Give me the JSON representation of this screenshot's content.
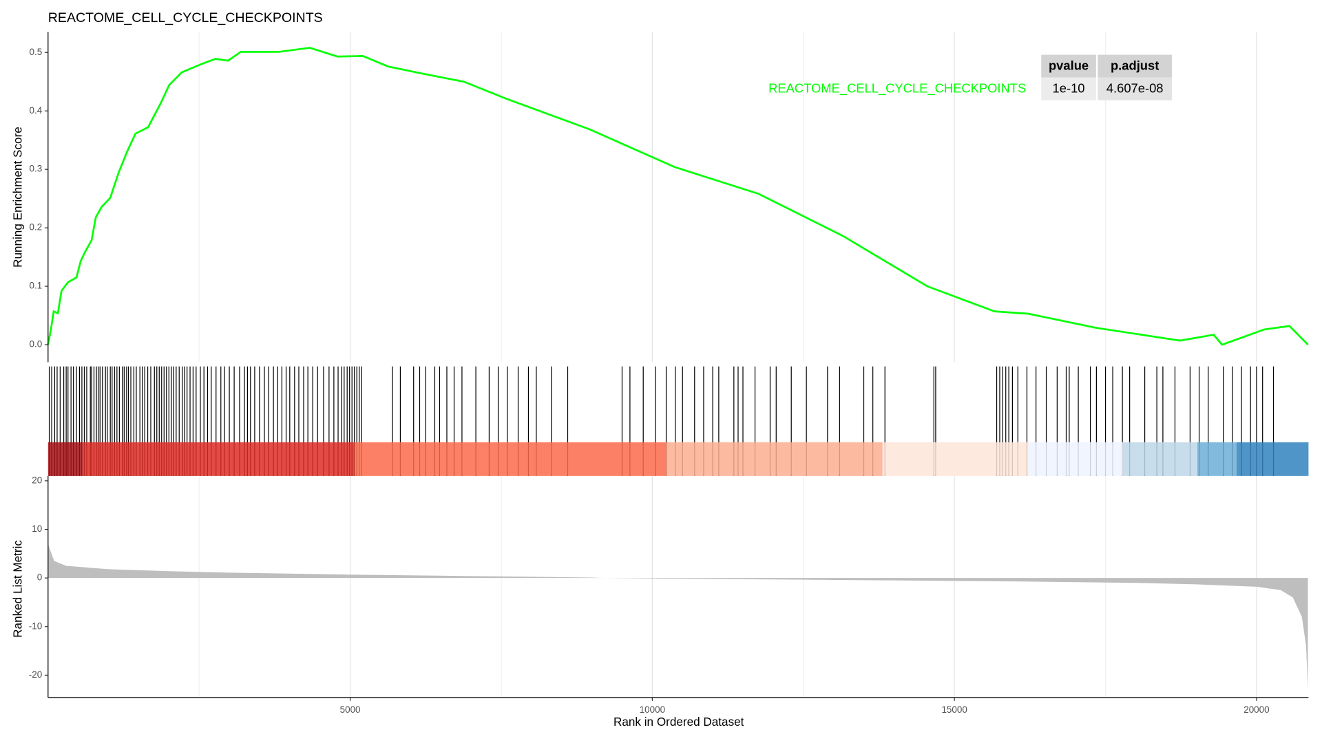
{
  "chart_data": [
    {
      "type": "line",
      "title": "REACTOME_CELL_CYCLE_CHECKPOINTS",
      "ylabel": "Running Enrichment Score",
      "x": [
        0,
        52,
        93,
        163,
        222,
        330,
        470,
        540,
        609,
        721,
        790,
        888,
        1028,
        1167,
        1307,
        1446,
        1655,
        1864,
        2003,
        2212,
        2560,
        2770,
        2979,
        3188,
        3537,
        3816,
        4332,
        4792,
        5210,
        5628,
        6186,
        6883,
        7580,
        8974,
        10368,
        11762,
        13156,
        14550,
        15665,
        16223,
        17338,
        18732,
        19290,
        19429,
        20126,
        20544,
        20851
      ],
      "series": [
        {
          "name": "REACTOME_CELL_CYCLE_CHECKPOINTS",
          "color": "#00ff00",
          "values": [
            0,
            0.029,
            0.057,
            0.054,
            0.092,
            0.107,
            0.115,
            0.143,
            0.158,
            0.179,
            0.218,
            0.236,
            0.251,
            0.294,
            0.33,
            0.361,
            0.372,
            0.413,
            0.444,
            0.466,
            0.481,
            0.489,
            0.486,
            0.501,
            0.501,
            0.501,
            0.508,
            0.493,
            0.494,
            0.476,
            0.464,
            0.45,
            0.421,
            0.368,
            0.304,
            0.258,
            0.186,
            0.1,
            0.057,
            0.053,
            0.029,
            0.007,
            0.017,
            0,
            0.026,
            0.032,
            0
          ]
        }
      ],
      "xlim": [
        0,
        20860
      ],
      "ylim": [
        -0.03,
        0.535
      ],
      "yticks": [
        {
          "value": 0,
          "label": "0.0"
        },
        0.1,
        0.2,
        0.3,
        0.4,
        0.5
      ],
      "table": {
        "columns": [
          "pvalue",
          "p.adjust"
        ],
        "rows": [
          [
            "1e-10",
            "4.607e-08"
          ]
        ]
      }
    },
    {
      "type": "rug",
      "color": "#000000",
      "x": [
        20,
        60,
        110,
        150,
        200,
        260,
        300,
        330,
        380,
        420,
        470,
        520,
        560,
        600,
        640,
        700,
        720,
        760,
        800,
        830,
        860,
        900,
        950,
        980,
        1030,
        1060,
        1100,
        1140,
        1180,
        1230,
        1260,
        1300,
        1330,
        1370,
        1420,
        1460,
        1520,
        1560,
        1600,
        1650,
        1700,
        1760,
        1800,
        1840,
        1880,
        1920,
        1960,
        2000,
        2040,
        2080,
        2120,
        2170,
        2220,
        2260,
        2300,
        2350,
        2400,
        2450,
        2520,
        2580,
        2640,
        2700,
        2780,
        2860,
        2920,
        3000,
        3080,
        3170,
        3250,
        3300,
        3350,
        3420,
        3500,
        3580,
        3650,
        3730,
        3800,
        3870,
        3940,
        4000,
        4080,
        4150,
        4230,
        4300,
        4380,
        4460,
        4560,
        4650,
        4730,
        4800,
        4860,
        4900,
        4950,
        4990,
        5030,
        5070,
        5110,
        5150,
        5190,
        5700,
        5830,
        6050,
        6150,
        6250,
        6400,
        6480,
        6600,
        6720,
        6850,
        7080,
        7300,
        7450,
        7600,
        7780,
        7950,
        8080,
        8330,
        8600,
        9500,
        9630,
        9850,
        10050,
        10230,
        10380,
        10500,
        10700,
        10850,
        11000,
        11100,
        11350,
        11420,
        11500,
        11700,
        11950,
        12050,
        12300,
        12550,
        12900,
        13100,
        13500,
        13650,
        13850,
        14660,
        14690,
        15700,
        15750,
        15800,
        15850,
        15900,
        15960,
        16050,
        16200,
        16350,
        16520,
        16700,
        16850,
        16900,
        17050,
        17250,
        17350,
        17500,
        17620,
        17780,
        17900,
        18150,
        18350,
        18450,
        18650,
        18900,
        19050,
        19200,
        19450,
        19600,
        19750,
        19900,
        20000,
        20100,
        20280
      ],
      "bins": [
        0,
        570,
        5070,
        10230,
        13810,
        16220,
        17790,
        19020,
        19670,
        20860
      ],
      "colors": [
        "#a50f15",
        "#de2d26",
        "#fb6a4a",
        "#fcae91",
        "#fee5d9",
        "#eff3ff",
        "#bdd7e7",
        "#6baed6",
        "#3182bd"
      ]
    },
    {
      "type": "area",
      "xlabel": "Rank in Ordered Dataset",
      "ylabel": "Ranked List Metric",
      "color": "#bebebe",
      "x": [
        0,
        100,
        300,
        1000,
        2000,
        3000,
        5000,
        7000,
        9000,
        9200,
        10000,
        12000,
        14000,
        16000,
        18000,
        19000,
        20000,
        20400,
        20600,
        20750,
        20820,
        20850
      ],
      "values": [
        7,
        3.5,
        2.5,
        1.8,
        1.4,
        1.1,
        0.7,
        0.4,
        0.1,
        0,
        -0.1,
        -0.3,
        -0.5,
        -0.7,
        -1,
        -1.3,
        -1.8,
        -2.5,
        -4,
        -8,
        -14,
        -23
      ],
      "xlim": [
        0,
        20860
      ],
      "ylim": [
        -24.6,
        21
      ],
      "xticks": [
        5000,
        10000,
        15000,
        20000
      ],
      "minor_xticks": [
        2500,
        7500,
        12500,
        17500
      ],
      "yticks": [
        -20,
        -10,
        0,
        10,
        20
      ],
      "grid": true
    }
  ]
}
